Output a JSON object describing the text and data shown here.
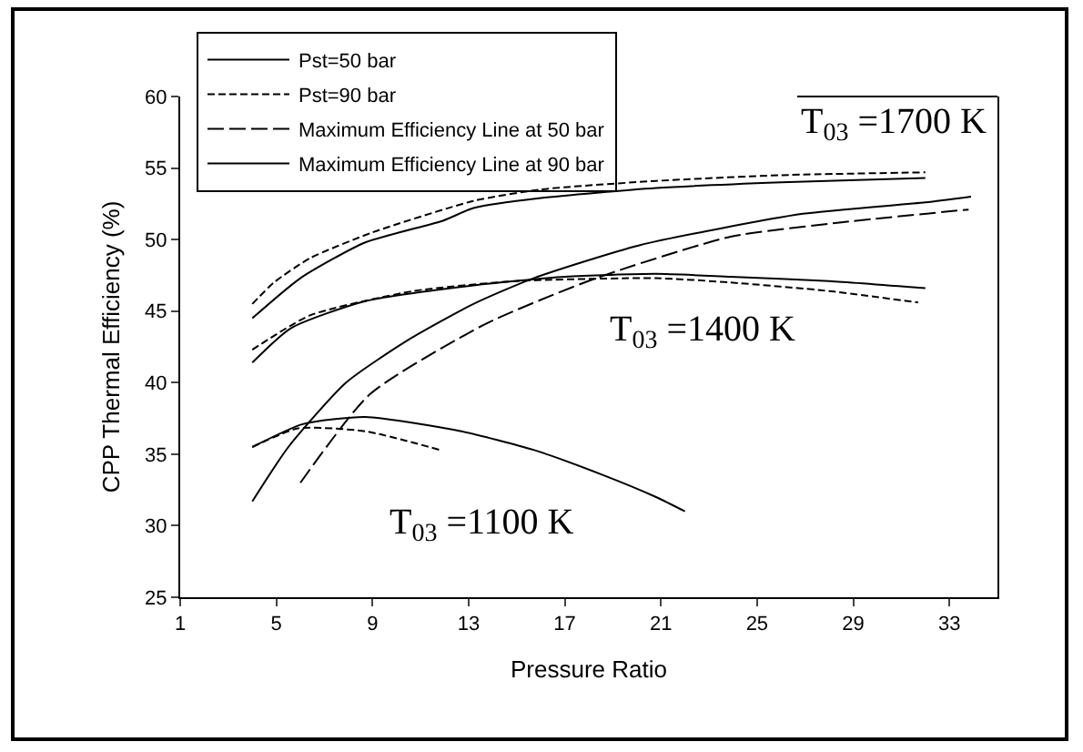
{
  "chart_data": {
    "type": "line",
    "xlabel": "Pressure Ratio",
    "ylabel": "CPP Thermal Efficiency (%)",
    "xlim": [
      1,
      35
    ],
    "xticks": [
      1,
      5,
      9,
      13,
      17,
      21,
      25,
      29,
      33
    ],
    "ylim": [
      25,
      60
    ],
    "yticks": [
      25,
      30,
      35,
      40,
      45,
      50,
      55,
      60
    ],
    "grid": false,
    "legend": "top left",
    "marker": "none",
    "series": [
      {
        "name": "Pst=50 bar",
        "color": "#000000",
        "line_style": "solid",
        "x": [
          4,
          6,
          8.7,
          11.9,
          13.2,
          16,
          20.8,
          26,
          32
        ],
        "values": [
          44.5,
          47.3,
          49.8,
          51.3,
          52.2,
          52.9,
          53.6,
          54.0,
          54.3
        ]
      },
      {
        "name": "Pst=90 bar",
        "color": "#000000",
        "line_style": "dashed",
        "x": [
          4,
          4.9,
          6.4,
          9,
          13.2,
          16,
          20.8,
          26,
          32
        ],
        "values": [
          45.5,
          47.0,
          48.7,
          50.5,
          52.7,
          53.5,
          54.1,
          54.5,
          54.7
        ]
      },
      {
        "color": "#000000",
        "line_style": "solid",
        "x": [
          4,
          5.6,
          8.7,
          13.2,
          17,
          20.8,
          23.9,
          28,
          32
        ],
        "values": [
          41.4,
          43.8,
          45.7,
          46.8,
          47.4,
          47.6,
          47.4,
          47.1,
          46.6
        ]
      },
      {
        "color": "#000000",
        "line_style": "dashed",
        "x": [
          4,
          6.4,
          10.7,
          15,
          20.8,
          23.9,
          28,
          31.7
        ],
        "values": [
          42.3,
          44.7,
          46.4,
          47.1,
          47.3,
          47.0,
          46.4,
          45.6
        ]
      },
      {
        "color": "#000000",
        "line_style": "solid",
        "x": [
          4,
          6.1,
          8.7,
          12.7,
          15.7,
          18.5,
          20.8,
          22
        ],
        "values": [
          35.5,
          37.1,
          37.6,
          36.6,
          35.3,
          33.6,
          32.0,
          31.0
        ]
      },
      {
        "color": "#000000",
        "line_style": "dashed",
        "x": [
          4,
          5.9,
          8.7,
          11.8
        ],
        "values": [
          35.5,
          36.8,
          36.6,
          35.3
        ]
      },
      {
        "name": "Maximum Efficiency Line at 50 bar",
        "color": "#000000",
        "line_style": "longdash",
        "x": [
          6,
          8.9,
          13.7,
          18.3,
          23.9,
          28.5,
          33.8
        ],
        "values": [
          33.0,
          39.2,
          44.1,
          47.3,
          50.2,
          51.2,
          52.1
        ]
      },
      {
        "name": "Maximum Efficiency Line at 90 bar",
        "color": "#000000",
        "line_style": "solid",
        "x": [
          4,
          5.5,
          7.9,
          10.5,
          13.2,
          15.7,
          20.1,
          26.9,
          32,
          33.9
        ],
        "values": [
          31.7,
          35.5,
          40.0,
          43.0,
          45.5,
          47.3,
          49.6,
          51.8,
          52.6,
          53.0
        ]
      }
    ],
    "annotations": [
      "T$_{03}$ =1700 K",
      "T$_{03}$ =1400 K",
      "T$_{03}$ =1100 K"
    ]
  }
}
